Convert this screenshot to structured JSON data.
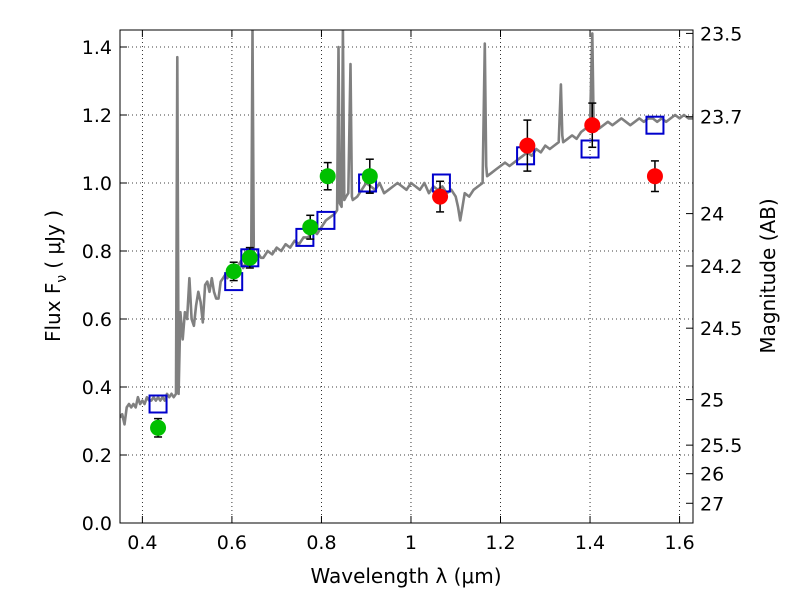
{
  "chart_data": {
    "type": "scatter",
    "title": "",
    "xlabel": "Wavelength  λ (μm)",
    "ylabel": "Flux  F",
    "ylabel_sub": "ν",
    "ylabel_unit": "( μJy )",
    "y2label": "Magnitude (AB)",
    "xlim": [
      0.35,
      1.63
    ],
    "ylim": [
      0.0,
      1.45
    ],
    "grid": true,
    "x_ticks": [
      0.4,
      0.6,
      0.8,
      1.0,
      1.2,
      1.4,
      1.6
    ],
    "x_tick_labels": [
      "0.4",
      "0.6",
      "0.8",
      "1",
      "1.2",
      "1.4",
      "1.6"
    ],
    "y_ticks": [
      0.0,
      0.2,
      0.4,
      0.6,
      0.8,
      1.0,
      1.2,
      1.4
    ],
    "y_tick_labels": [
      "0.0",
      "0.2",
      "0.4",
      "0.6",
      "0.8",
      "1.0",
      "1.2",
      "1.4"
    ],
    "y2_ticks": [
      {
        "label": "23.5",
        "flux": 1.44
      },
      {
        "label": "23.7",
        "flux": 1.195
      },
      {
        "label": "24",
        "flux": 0.91
      },
      {
        "label": "24.2",
        "flux": 0.756
      },
      {
        "label": "24.5",
        "flux": 0.573
      },
      {
        "label": "25",
        "flux": 0.363
      },
      {
        "label": "25.5",
        "flux": 0.229
      },
      {
        "label": "26",
        "flux": 0.145
      },
      {
        "label": "27",
        "flux": 0.058
      }
    ],
    "series": [
      {
        "marker": "line",
        "color": "#808080",
        "points": [
          [
            0.35,
            0.31
          ],
          [
            0.355,
            0.32
          ],
          [
            0.36,
            0.29
          ],
          [
            0.365,
            0.34
          ],
          [
            0.37,
            0.35
          ],
          [
            0.375,
            0.34
          ],
          [
            0.38,
            0.35
          ],
          [
            0.385,
            0.34
          ],
          [
            0.39,
            0.37
          ],
          [
            0.395,
            0.35
          ],
          [
            0.4,
            0.36
          ],
          [
            0.405,
            0.35
          ],
          [
            0.41,
            0.37
          ],
          [
            0.415,
            0.36
          ],
          [
            0.42,
            0.36
          ],
          [
            0.425,
            0.37
          ],
          [
            0.43,
            0.36
          ],
          [
            0.435,
            0.37
          ],
          [
            0.44,
            0.36
          ],
          [
            0.445,
            0.37
          ],
          [
            0.45,
            0.36
          ],
          [
            0.455,
            0.38
          ],
          [
            0.46,
            0.37
          ],
          [
            0.465,
            0.38
          ],
          [
            0.47,
            0.37
          ],
          [
            0.475,
            0.38
          ],
          [
            0.478,
            1.37
          ],
          [
            0.481,
            0.38
          ],
          [
            0.485,
            0.62
          ],
          [
            0.49,
            0.54
          ],
          [
            0.495,
            0.62
          ],
          [
            0.5,
            0.6
          ],
          [
            0.505,
            0.72
          ],
          [
            0.51,
            0.6
          ],
          [
            0.515,
            0.58
          ],
          [
            0.52,
            0.64
          ],
          [
            0.525,
            0.68
          ],
          [
            0.53,
            0.65
          ],
          [
            0.535,
            0.59
          ],
          [
            0.54,
            0.7
          ],
          [
            0.545,
            0.71
          ],
          [
            0.55,
            0.68
          ],
          [
            0.555,
            0.72
          ],
          [
            0.56,
            0.68
          ],
          [
            0.565,
            0.66
          ],
          [
            0.57,
            0.66
          ],
          [
            0.575,
            0.71
          ],
          [
            0.58,
            0.72
          ],
          [
            0.585,
            0.73
          ],
          [
            0.59,
            0.72
          ],
          [
            0.595,
            0.74
          ],
          [
            0.6,
            0.75
          ],
          [
            0.605,
            0.72
          ],
          [
            0.61,
            0.74
          ],
          [
            0.615,
            0.76
          ],
          [
            0.62,
            0.77
          ],
          [
            0.625,
            0.75
          ],
          [
            0.63,
            0.76
          ],
          [
            0.633,
            0.8
          ],
          [
            0.636,
            0.77
          ],
          [
            0.64,
            0.78
          ],
          [
            0.643,
            0.77
          ],
          [
            0.646,
            1.45
          ],
          [
            0.649,
            0.79
          ],
          [
            0.652,
            0.77
          ],
          [
            0.655,
            0.78
          ],
          [
            0.66,
            0.79
          ],
          [
            0.665,
            0.78
          ],
          [
            0.67,
            0.78
          ],
          [
            0.675,
            0.79
          ],
          [
            0.68,
            0.8
          ],
          [
            0.69,
            0.79
          ],
          [
            0.7,
            0.81
          ],
          [
            0.71,
            0.8
          ],
          [
            0.72,
            0.82
          ],
          [
            0.73,
            0.81
          ],
          [
            0.74,
            0.83
          ],
          [
            0.75,
            0.82
          ],
          [
            0.76,
            0.84
          ],
          [
            0.77,
            0.84
          ],
          [
            0.78,
            0.86
          ],
          [
            0.79,
            0.85
          ],
          [
            0.8,
            0.87
          ],
          [
            0.81,
            0.89
          ],
          [
            0.82,
            0.9
          ],
          [
            0.83,
            0.91
          ],
          [
            0.835,
            0.92
          ],
          [
            0.838,
            1.4
          ],
          [
            0.841,
            0.94
          ],
          [
            0.845,
            0.93
          ],
          [
            0.848,
            1.45
          ],
          [
            0.851,
            0.95
          ],
          [
            0.855,
            0.96
          ],
          [
            0.86,
            0.97
          ],
          [
            0.865,
            1.35
          ],
          [
            0.868,
            0.96
          ],
          [
            0.87,
            0.95
          ],
          [
            0.88,
            0.96
          ],
          [
            0.89,
            0.98
          ],
          [
            0.9,
            1.0
          ],
          [
            0.91,
            0.99
          ],
          [
            0.92,
            0.98
          ],
          [
            0.93,
            1.0
          ],
          [
            0.94,
            0.97
          ],
          [
            0.95,
            0.98
          ],
          [
            0.96,
            0.99
          ],
          [
            0.97,
            1.0
          ],
          [
            0.98,
            0.99
          ],
          [
            0.99,
            0.98
          ],
          [
            1.0,
            1.0
          ],
          [
            1.01,
            0.99
          ],
          [
            1.02,
            0.98
          ],
          [
            1.03,
            1.0
          ],
          [
            1.04,
            0.97
          ],
          [
            1.05,
            0.99
          ],
          [
            1.06,
            0.98
          ],
          [
            1.07,
            0.99
          ],
          [
            1.08,
            0.97
          ],
          [
            1.09,
            0.98
          ],
          [
            1.1,
            0.96
          ],
          [
            1.105,
            0.93
          ],
          [
            1.11,
            0.89
          ],
          [
            1.115,
            0.93
          ],
          [
            1.12,
            0.97
          ],
          [
            1.13,
            0.96
          ],
          [
            1.14,
            0.98
          ],
          [
            1.15,
            0.99
          ],
          [
            1.16,
            1.0
          ],
          [
            1.165,
            1.41
          ],
          [
            1.168,
            1.05
          ],
          [
            1.17,
            1.02
          ],
          [
            1.18,
            1.03
          ],
          [
            1.19,
            1.04
          ],
          [
            1.2,
            1.05
          ],
          [
            1.21,
            1.06
          ],
          [
            1.22,
            1.05
          ],
          [
            1.23,
            1.06
          ],
          [
            1.24,
            1.07
          ],
          [
            1.25,
            1.08
          ],
          [
            1.26,
            1.09
          ],
          [
            1.27,
            1.08
          ],
          [
            1.28,
            1.1
          ],
          [
            1.29,
            1.09
          ],
          [
            1.3,
            1.11
          ],
          [
            1.31,
            1.1
          ],
          [
            1.32,
            1.11
          ],
          [
            1.33,
            1.12
          ],
          [
            1.335,
            1.29
          ],
          [
            1.338,
            1.14
          ],
          [
            1.34,
            1.12
          ],
          [
            1.35,
            1.13
          ],
          [
            1.36,
            1.14
          ],
          [
            1.37,
            1.13
          ],
          [
            1.38,
            1.15
          ],
          [
            1.39,
            1.16
          ],
          [
            1.4,
            1.17
          ],
          [
            1.405,
            1.44
          ],
          [
            1.408,
            1.18
          ],
          [
            1.41,
            1.17
          ],
          [
            1.42,
            1.16
          ],
          [
            1.43,
            1.17
          ],
          [
            1.44,
            1.18
          ],
          [
            1.45,
            1.17
          ],
          [
            1.46,
            1.18
          ],
          [
            1.47,
            1.19
          ],
          [
            1.48,
            1.18
          ],
          [
            1.49,
            1.17
          ],
          [
            1.5,
            1.18
          ],
          [
            1.51,
            1.19
          ],
          [
            1.52,
            1.18
          ],
          [
            1.53,
            1.19
          ],
          [
            1.54,
            1.19
          ],
          [
            1.55,
            1.18
          ],
          [
            1.56,
            1.19
          ],
          [
            1.57,
            1.18
          ],
          [
            1.58,
            1.19
          ],
          [
            1.59,
            1.2
          ],
          [
            1.6,
            1.19
          ],
          [
            1.61,
            1.2
          ],
          [
            1.62,
            1.19
          ],
          [
            1.63,
            1.19
          ]
        ]
      },
      {
        "marker": "square",
        "color": "#0000cc",
        "x": [
          0.435,
          0.604,
          0.64,
          0.763,
          0.81,
          0.903,
          1.068,
          1.256,
          1.4,
          1.545
        ],
        "y": [
          0.35,
          0.71,
          0.78,
          0.84,
          0.89,
          1.0,
          1.0,
          1.08,
          1.1,
          1.17
        ]
      },
      {
        "marker": "circle",
        "color": "#00c000",
        "x": [
          0.435,
          0.604,
          0.64,
          0.775,
          0.814,
          0.908
        ],
        "y": [
          0.28,
          0.74,
          0.78,
          0.87,
          1.02,
          1.02
        ],
        "yerr": [
          0.027,
          0.027,
          0.03,
          0.035,
          0.04,
          0.05
        ]
      },
      {
        "marker": "circle",
        "color": "#ff0000",
        "x": [
          1.065,
          1.26,
          1.405,
          1.545
        ],
        "y": [
          0.96,
          1.11,
          1.17,
          1.02
        ],
        "yerr": [
          0.045,
          0.075,
          0.065,
          0.045
        ]
      }
    ]
  }
}
